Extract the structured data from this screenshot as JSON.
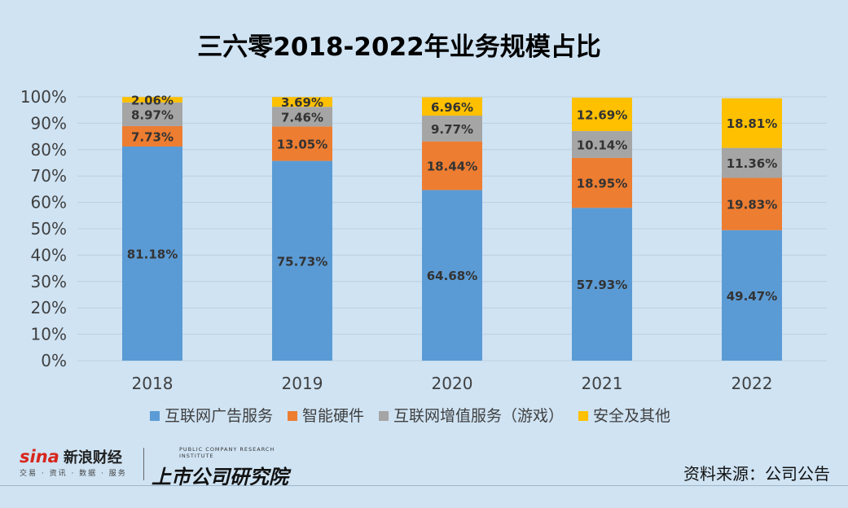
{
  "chart_data": {
    "type": "bar",
    "stacked": true,
    "title": "三六零2018-2022年业务规模占比",
    "xlabel": "",
    "ylabel": "",
    "categories": [
      "2018",
      "2019",
      "2020",
      "2021",
      "2022"
    ],
    "ylim": [
      0,
      100
    ],
    "yticks": [
      "0%",
      "10%",
      "20%",
      "30%",
      "40%",
      "50%",
      "60%",
      "70%",
      "80%",
      "90%",
      "100%"
    ],
    "grid": true,
    "legend_position": "bottom",
    "series": [
      {
        "name": "互联网广告服务",
        "color": "#5b9bd5",
        "values": [
          81.18,
          75.73,
          64.68,
          57.93,
          49.47
        ],
        "labels": [
          "81.18%",
          "75.73%",
          "64.68%",
          "57.93%",
          "49.47%"
        ]
      },
      {
        "name": "智能硬件",
        "color": "#ed7d31",
        "values": [
          7.73,
          13.05,
          18.44,
          18.95,
          19.83
        ],
        "labels": [
          "7.73%",
          "13.05%",
          "18.44%",
          "18.95%",
          "19.83%"
        ]
      },
      {
        "name": "互联网增值服务（游戏）",
        "color": "#a5a5a5",
        "values": [
          8.97,
          7.46,
          9.77,
          10.14,
          11.36
        ],
        "labels": [
          "8.97%",
          "7.46%",
          "9.77%",
          "10.14%",
          "11.36%"
        ]
      },
      {
        "name": "安全及其他",
        "color": "#ffc000",
        "values": [
          2.06,
          3.69,
          6.96,
          12.69,
          18.81
        ],
        "labels": [
          "2.06%",
          "3.69%",
          "6.96%",
          "12.69%",
          "18.81%"
        ]
      }
    ]
  },
  "source": "资料来源：公司公告",
  "logos": {
    "sina_word": "sina",
    "sina_cn": "新浪财经",
    "sina_tag": "交易 · 资讯 · 数据 · 服务",
    "institute_tag": "PUBLIC COMPANY RESEARCH INSTITUTE",
    "institute_cn": "上市公司研究院"
  }
}
